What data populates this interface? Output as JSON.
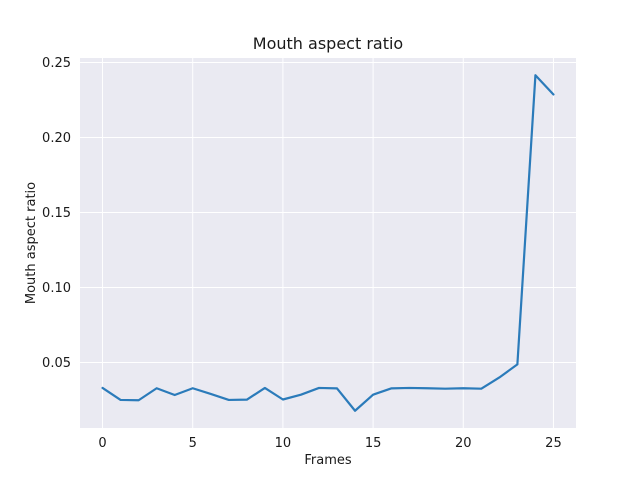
{
  "chart_data": {
    "type": "line",
    "title": "Mouth aspect ratio",
    "xlabel": "Frames",
    "ylabel": "Mouth aspect ratio",
    "xlim": [
      -1.25,
      26.25
    ],
    "ylim": [
      0.0063,
      0.253
    ],
    "xticks": [
      0,
      5,
      10,
      15,
      20,
      25
    ],
    "xtick_labels": [
      "0",
      "5",
      "10",
      "15",
      "20",
      "25"
    ],
    "yticks": [
      0.05,
      0.1,
      0.15,
      0.2,
      0.25
    ],
    "ytick_labels": [
      "0.05",
      "0.10",
      "0.15",
      "0.20",
      "0.25"
    ],
    "grid": true,
    "style": {
      "background": "#eaeaf2",
      "grid_color": "#ffffff",
      "line_color": "#2b7bba"
    },
    "series": [
      {
        "x": [
          0,
          1,
          2,
          3,
          4,
          5,
          6,
          7,
          8,
          9,
          10,
          11,
          12,
          13,
          14,
          15,
          16,
          17,
          18,
          19,
          20,
          21,
          22,
          23,
          24,
          25
        ],
        "values": [
          0.033,
          0.025,
          0.0248,
          0.0328,
          0.0283,
          0.0328,
          0.029,
          0.025,
          0.0252,
          0.033,
          0.0253,
          0.0285,
          0.033,
          0.0327,
          0.0178,
          0.0285,
          0.0327,
          0.033,
          0.0328,
          0.0325,
          0.0328,
          0.0325,
          0.04,
          0.0487,
          0.2415,
          0.2287
        ]
      }
    ]
  }
}
